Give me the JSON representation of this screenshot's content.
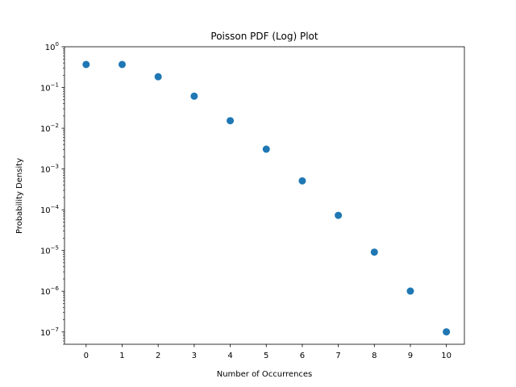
{
  "chart_data": {
    "type": "scatter",
    "title": "Poisson PDF (Log) Plot",
    "xlabel": "Number of Occurrences",
    "ylabel": "Probability Density",
    "x": [
      0,
      1,
      2,
      3,
      4,
      5,
      6,
      7,
      8,
      9,
      10
    ],
    "y": [
      0.3679,
      0.3679,
      0.1839,
      0.0613,
      0.01533,
      0.003066,
      0.000511,
      7.3e-05,
      9.12e-06,
      1.01e-06,
      1.01e-07
    ],
    "yscale": "log",
    "xlim": [
      -0.6,
      10.5
    ],
    "ylim": [
      5e-08,
      1
    ],
    "x_ticks": [
      0,
      1,
      2,
      3,
      4,
      5,
      6,
      7,
      8,
      9,
      10
    ],
    "y_ticks": [
      {
        "value": 1.0,
        "base": "10",
        "exp": "0"
      },
      {
        "value": 0.1,
        "base": "10",
        "exp": "−1"
      },
      {
        "value": 0.01,
        "base": "10",
        "exp": "−2"
      },
      {
        "value": 0.001,
        "base": "10",
        "exp": "−3"
      },
      {
        "value": 0.0001,
        "base": "10",
        "exp": "−4"
      },
      {
        "value": 1e-05,
        "base": "10",
        "exp": "−5"
      },
      {
        "value": 1e-06,
        "base": "10",
        "exp": "−6"
      },
      {
        "value": 1e-07,
        "base": "10",
        "exp": "−7"
      }
    ],
    "grid": false,
    "marker_color": "#1f77b4"
  }
}
